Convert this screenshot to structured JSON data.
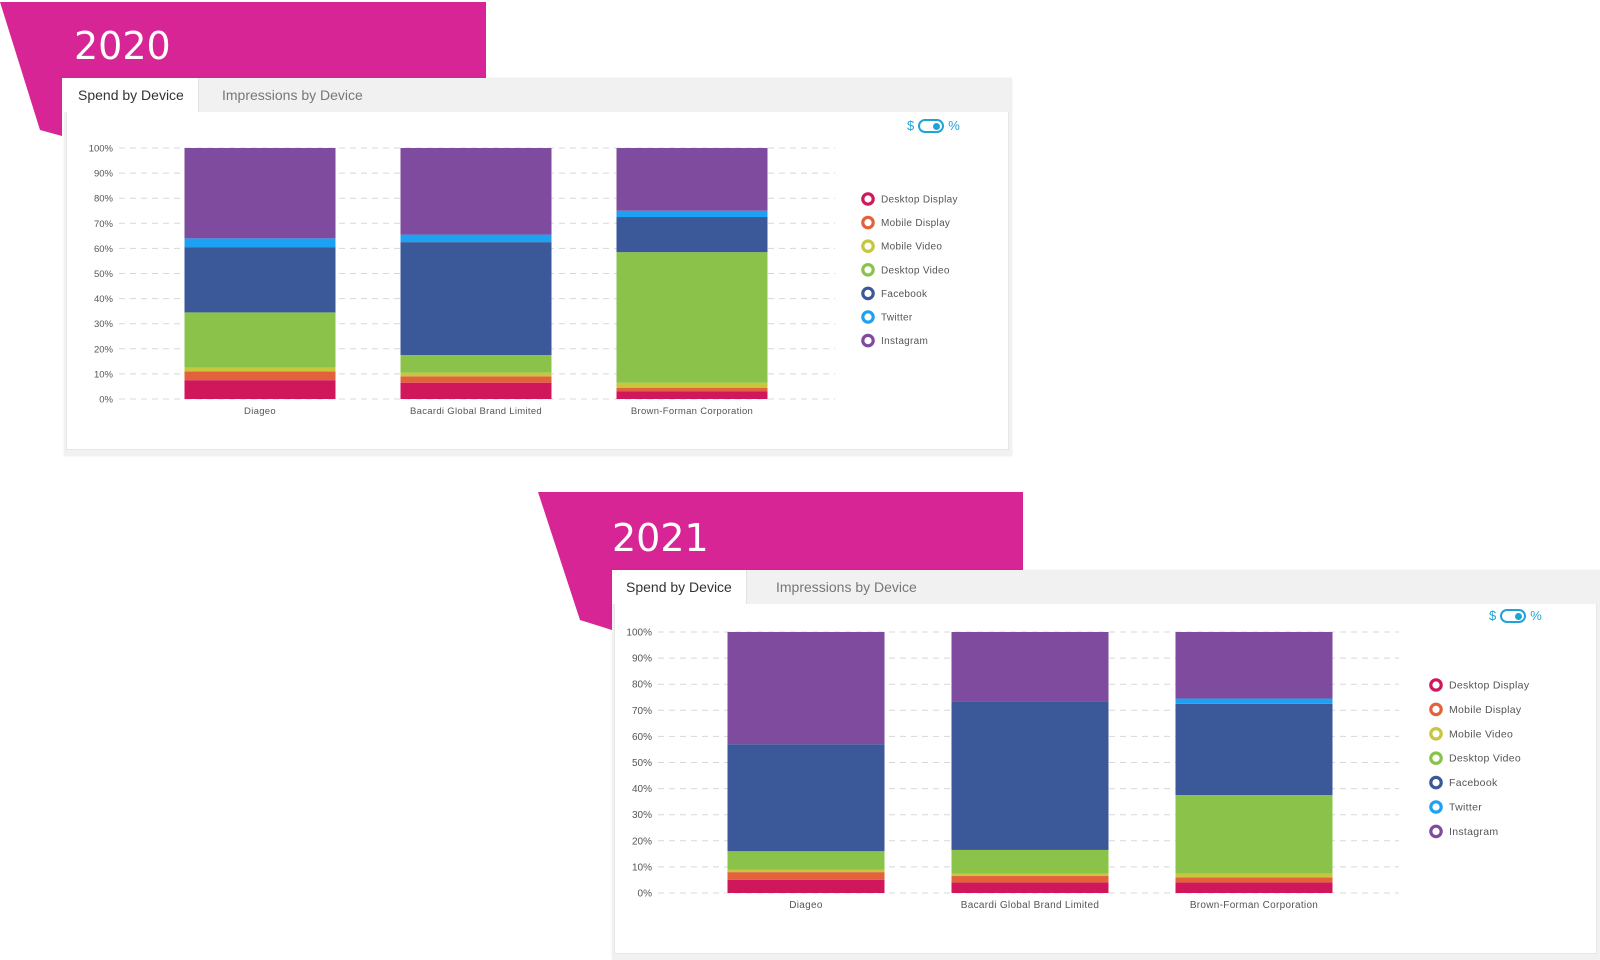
{
  "colors": {
    "banner": "#d72596",
    "series": {
      "Desktop Display": "#d1175b",
      "Mobile Display": "#e2623c",
      "Mobile Video": "#c7c63e",
      "Desktop Video": "#8bc34a",
      "Facebook": "#3b5998",
      "Twitter": "#1da1f2",
      "Instagram": "#7e4b9e"
    }
  },
  "toggle": {
    "left": "$",
    "right": "%"
  },
  "tabs": {
    "spend": "Spend by Device",
    "impressions": "Impressions by Device"
  },
  "chart_data": [
    {
      "type": "bar",
      "stacked": true,
      "title": "2020",
      "categories": [
        "Diageo",
        "Bacardi Global Brand Limited",
        "Brown-Forman Corporation"
      ],
      "yticks": [
        "0%",
        "10%",
        "20%",
        "30%",
        "40%",
        "50%",
        "60%",
        "70%",
        "80%",
        "90%",
        "100%"
      ],
      "ylim": [
        0,
        100
      ],
      "series": [
        {
          "name": "Desktop Display",
          "values": [
            7.5,
            6.5,
            3
          ]
        },
        {
          "name": "Mobile Display",
          "values": [
            3.5,
            2.5,
            1.5
          ]
        },
        {
          "name": "Mobile Video",
          "values": [
            1.5,
            1.5,
            2
          ]
        },
        {
          "name": "Desktop Video",
          "values": [
            22,
            7,
            52
          ]
        },
        {
          "name": "Facebook",
          "values": [
            26,
            45,
            14
          ]
        },
        {
          "name": "Twitter",
          "values": [
            3.5,
            3,
            2.5
          ]
        },
        {
          "name": "Instagram",
          "values": [
            36,
            34.5,
            25
          ]
        }
      ]
    },
    {
      "type": "bar",
      "stacked": true,
      "title": "2021",
      "categories": [
        "Diageo",
        "Bacardi Global Brand Limited",
        "Brown-Forman Corporation"
      ],
      "yticks": [
        "0%",
        "10%",
        "20%",
        "30%",
        "40%",
        "50%",
        "60%",
        "70%",
        "80%",
        "90%",
        "100%"
      ],
      "ylim": [
        0,
        100
      ],
      "series": [
        {
          "name": "Desktop Display",
          "values": [
            5,
            4,
            4
          ]
        },
        {
          "name": "Mobile Display",
          "values": [
            3,
            2.5,
            2
          ]
        },
        {
          "name": "Mobile Video",
          "values": [
            1,
            1,
            1.5
          ]
        },
        {
          "name": "Desktop Video",
          "values": [
            7,
            9,
            30
          ]
        },
        {
          "name": "Facebook",
          "values": [
            41,
            57,
            35
          ]
        },
        {
          "name": "Twitter",
          "values": [
            0,
            0,
            2
          ]
        },
        {
          "name": "Instagram",
          "values": [
            43,
            26.5,
            25.5
          ]
        }
      ]
    }
  ]
}
